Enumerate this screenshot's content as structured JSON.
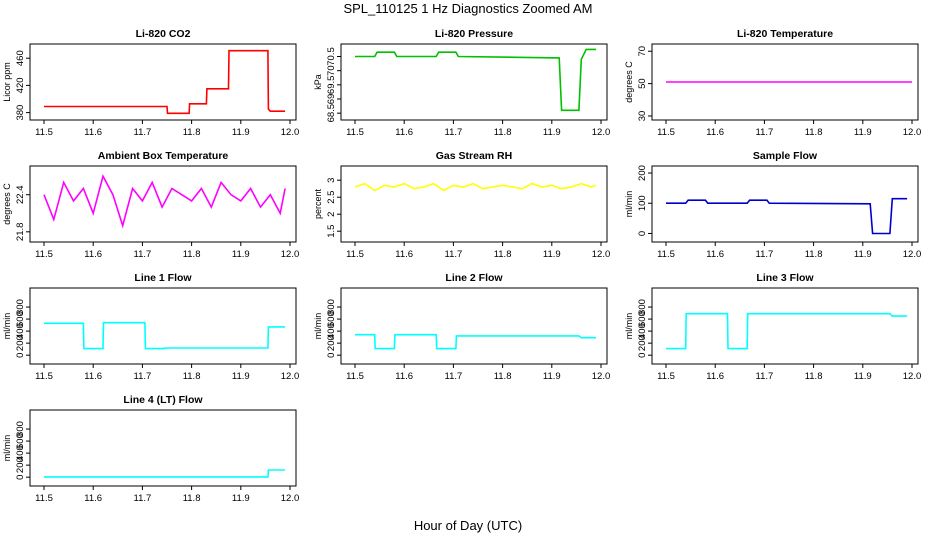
{
  "title": "SPL_110125  1 Hz Diagnostics Zoomed AM",
  "xlabel": "Hour of Day (UTC)",
  "chart_data": [
    {
      "type": "line",
      "title": "Li-820 CO2",
      "ylabel": "Licor ppm",
      "color": "#ff0000",
      "xlim": [
        11.5,
        12.0
      ],
      "ylim": [
        375,
        475
      ],
      "xticks": [
        11.5,
        11.6,
        11.7,
        11.8,
        11.9,
        12.0
      ],
      "yticks": [
        380,
        420,
        460
      ],
      "x": [
        11.5,
        11.75,
        11.751,
        11.795,
        11.796,
        11.83,
        11.831,
        11.875,
        11.876,
        11.955,
        11.956,
        11.96,
        11.99
      ],
      "y": [
        389,
        389,
        379,
        379,
        393,
        393,
        415,
        415,
        471,
        471,
        385,
        382,
        382
      ]
    },
    {
      "type": "line",
      "title": "Li-820 Pressure",
      "ylabel": "kPa",
      "color": "#00c000",
      "xlim": [
        11.5,
        12.0
      ],
      "ylim": [
        68.4,
        70.8
      ],
      "xticks": [
        11.5,
        11.6,
        11.7,
        11.8,
        11.9,
        12.0
      ],
      "yticks": [
        68.5,
        69.0,
        69.5,
        70.0,
        70.5
      ],
      "x": [
        11.5,
        11.54,
        11.545,
        11.58,
        11.585,
        11.665,
        11.67,
        11.705,
        11.71,
        11.915,
        11.92,
        11.955,
        11.96,
        11.97,
        11.99
      ],
      "y": [
        70.5,
        70.5,
        70.65,
        70.65,
        70.5,
        70.5,
        70.65,
        70.65,
        70.5,
        70.45,
        68.6,
        68.6,
        70.4,
        70.75,
        70.75
      ]
    },
    {
      "type": "line",
      "title": "Li-820 Temperature",
      "ylabel": "degrees C",
      "color": "#ff00ff",
      "xlim": [
        11.5,
        12.0
      ],
      "ylim": [
        30,
        72
      ],
      "xticks": [
        11.5,
        11.6,
        11.7,
        11.8,
        11.9,
        12.0
      ],
      "yticks": [
        30,
        50,
        70
      ],
      "x": [
        11.5,
        12.0
      ],
      "y": [
        51,
        51
      ]
    },
    {
      "type": "line",
      "title": "Ambient Box Temperature",
      "ylabel": "degrees C",
      "color": "#ff00ff",
      "xlim": [
        11.5,
        12.0
      ],
      "ylim": [
        21.7,
        22.8
      ],
      "xticks": [
        11.5,
        11.6,
        11.7,
        11.8,
        11.9,
        12.0
      ],
      "yticks": [
        21.8,
        22.4
      ],
      "x": [
        11.5,
        11.52,
        11.54,
        11.56,
        11.58,
        11.6,
        11.62,
        11.64,
        11.66,
        11.68,
        11.7,
        11.72,
        11.74,
        11.76,
        11.78,
        11.8,
        11.82,
        11.84,
        11.86,
        11.88,
        11.9,
        11.92,
        11.94,
        11.96,
        11.98,
        11.99
      ],
      "y": [
        22.4,
        22.0,
        22.6,
        22.3,
        22.5,
        22.1,
        22.7,
        22.4,
        21.9,
        22.5,
        22.3,
        22.6,
        22.2,
        22.5,
        22.4,
        22.3,
        22.5,
        22.2,
        22.6,
        22.4,
        22.3,
        22.5,
        22.2,
        22.4,
        22.1,
        22.5
      ]
    },
    {
      "type": "line",
      "title": "Gas Stream RH",
      "ylabel": "percent",
      "color": "#ffff00",
      "xlim": [
        11.5,
        12.0
      ],
      "ylim": [
        1.3,
        3.3
      ],
      "xticks": [
        11.5,
        11.6,
        11.7,
        11.8,
        11.9,
        12.0
      ],
      "yticks": [
        1.5,
        2.0,
        2.5,
        3.0
      ],
      "x": [
        11.5,
        11.52,
        11.54,
        11.56,
        11.58,
        11.6,
        11.62,
        11.64,
        11.66,
        11.68,
        11.7,
        11.72,
        11.74,
        11.76,
        11.78,
        11.8,
        11.82,
        11.84,
        11.86,
        11.88,
        11.9,
        11.92,
        11.94,
        11.96,
        11.98,
        11.99
      ],
      "y": [
        2.8,
        2.9,
        2.7,
        2.85,
        2.8,
        2.9,
        2.75,
        2.8,
        2.9,
        2.7,
        2.85,
        2.8,
        2.9,
        2.75,
        2.8,
        2.85,
        2.8,
        2.75,
        2.9,
        2.8,
        2.85,
        2.75,
        2.8,
        2.9,
        2.8,
        2.85
      ]
    },
    {
      "type": "line",
      "title": "Sample Flow",
      "ylabel": "ml/min",
      "color": "#0000cc",
      "xlim": [
        11.5,
        12.0
      ],
      "ylim": [
        -15,
        210
      ],
      "xticks": [
        11.5,
        11.6,
        11.7,
        11.8,
        11.9,
        12.0
      ],
      "yticks": [
        0,
        100,
        200
      ],
      "x": [
        11.5,
        11.54,
        11.545,
        11.58,
        11.585,
        11.665,
        11.67,
        11.705,
        11.71,
        11.915,
        11.92,
        11.955,
        11.96,
        11.99
      ],
      "y": [
        100,
        100,
        110,
        110,
        100,
        100,
        110,
        110,
        100,
        98,
        0,
        0,
        115,
        115
      ]
    },
    {
      "type": "line",
      "title": "Line 1 Flow",
      "ylabel": "ml/min",
      "color": "#00ffff",
      "xlim": [
        11.5,
        12.0
      ],
      "ylim": [
        -80,
        1050
      ],
      "xticks": [
        11.5,
        11.6,
        11.7,
        11.8,
        11.9,
        12.0
      ],
      "yticks": [
        0,
        200,
        400,
        600,
        800
      ],
      "x": [
        11.5,
        11.58,
        11.581,
        11.62,
        11.621,
        11.705,
        11.706,
        11.745,
        11.746,
        11.955,
        11.956,
        11.99
      ],
      "y": [
        530,
        530,
        110,
        110,
        540,
        540,
        110,
        110,
        120,
        120,
        470,
        470
      ]
    },
    {
      "type": "line",
      "title": "Line 2 Flow",
      "ylabel": "ml/min",
      "color": "#00ffff",
      "xlim": [
        11.5,
        12.0
      ],
      "ylim": [
        -80,
        1050
      ],
      "xticks": [
        11.5,
        11.6,
        11.7,
        11.8,
        11.9,
        12.0
      ],
      "yticks": [
        0,
        200,
        400,
        600,
        800
      ],
      "x": [
        11.5,
        11.54,
        11.541,
        11.58,
        11.581,
        11.665,
        11.666,
        11.705,
        11.706,
        11.955,
        11.96,
        11.99
      ],
      "y": [
        340,
        340,
        110,
        110,
        340,
        340,
        110,
        110,
        320,
        320,
        290,
        290
      ]
    },
    {
      "type": "line",
      "title": "Line 3 Flow",
      "ylabel": "ml/min",
      "color": "#00ffff",
      "xlim": [
        11.5,
        12.0
      ],
      "ylim": [
        -80,
        1050
      ],
      "xticks": [
        11.5,
        11.6,
        11.7,
        11.8,
        11.9,
        12.0
      ],
      "yticks": [
        0,
        200,
        400,
        600,
        800
      ],
      "x": [
        11.5,
        11.54,
        11.541,
        11.625,
        11.626,
        11.665,
        11.666,
        11.955,
        11.96,
        11.99
      ],
      "y": [
        110,
        110,
        690,
        690,
        110,
        110,
        690,
        690,
        650,
        650
      ]
    },
    {
      "type": "line",
      "title": "Line 4 (LT) Flow",
      "ylabel": "ml/min",
      "color": "#00ffff",
      "xlim": [
        11.5,
        12.0
      ],
      "ylim": [
        -80,
        1050
      ],
      "xticks": [
        11.5,
        11.6,
        11.7,
        11.8,
        11.9,
        12.0
      ],
      "yticks": [
        0,
        200,
        400,
        600,
        800
      ],
      "x": [
        11.5,
        11.955,
        11.956,
        11.99
      ],
      "y": [
        5,
        5,
        120,
        120
      ]
    }
  ]
}
